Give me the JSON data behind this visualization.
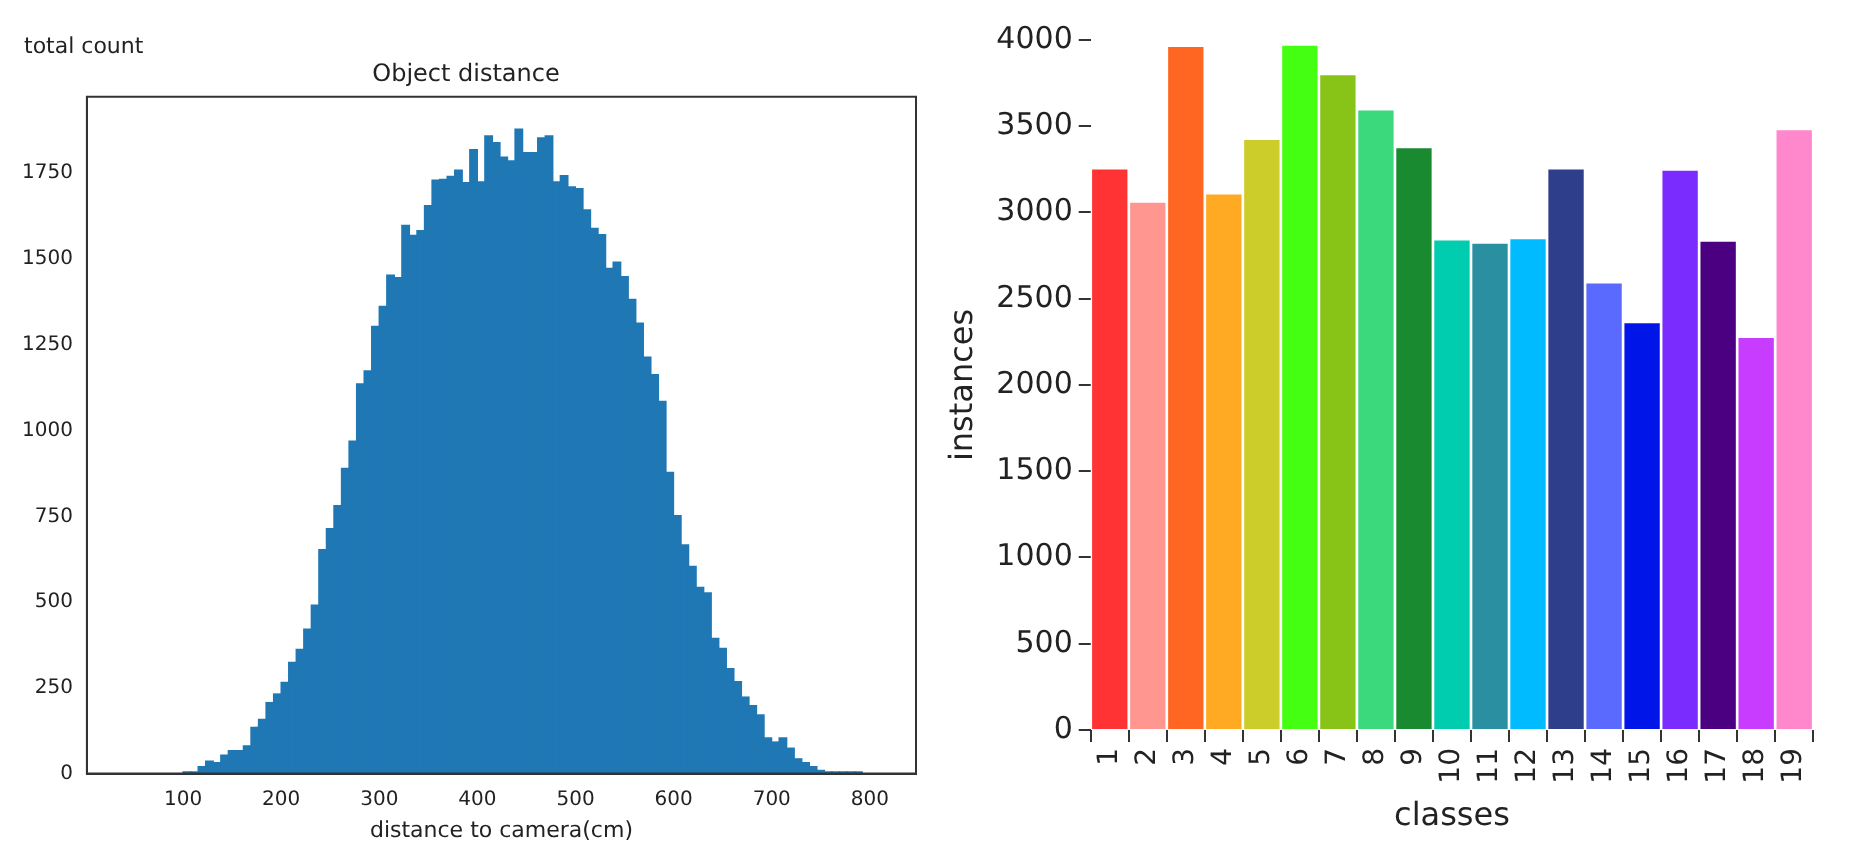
{
  "chart_data": [
    {
      "type": "histogram",
      "title": "Object distance",
      "ylabel": "total count",
      "xlabel": "distance to camera(cm)",
      "color": "#1f77b4",
      "bins": [
        100,
        107.69,
        115.38,
        123.07,
        130.76,
        138.45,
        146.14,
        153.83,
        161.52,
        169.21,
        176.9,
        184.59,
        192.28,
        199.97,
        207.66,
        215.35,
        223.04,
        230.73,
        238.42,
        246.11,
        253.8,
        261.49,
        269.18,
        276.87,
        284.56,
        292.25,
        299.94,
        307.63,
        315.32,
        323.01,
        330.7,
        338.39,
        346.08,
        353.77,
        361.46,
        369.15,
        376.84,
        384.53,
        392.22,
        399.91,
        407.6,
        415.29,
        422.98,
        430.67,
        438.36,
        446.05,
        453.74,
        461.43,
        469.12,
        476.81,
        484.5,
        492.19,
        499.88,
        507.57,
        515.26,
        522.95,
        530.64,
        538.33,
        546.02,
        553.71,
        561.4,
        569.09,
        576.78,
        584.47,
        592.16,
        599.85,
        607.54,
        615.23,
        622.92,
        630.61,
        638.3,
        645.99,
        653.68,
        661.37,
        669.06,
        676.75,
        684.44,
        692.13,
        699.82,
        707.51,
        715.2,
        722.89,
        730.58,
        738.27,
        745.96,
        753.65,
        761.34,
        769.03,
        776.72,
        784.41,
        792.1
      ],
      "values": [
        5,
        5,
        20,
        36,
        32,
        54,
        67,
        67,
        81,
        135,
        158,
        207,
        232,
        266,
        324,
        362,
        421,
        491,
        653,
        714,
        781,
        890,
        969,
        1136,
        1174,
        1304,
        1362,
        1453,
        1446,
        1598,
        1569,
        1583,
        1656,
        1730,
        1732,
        1741,
        1759,
        1723,
        1819,
        1725,
        1859,
        1839,
        1797,
        1786,
        1879,
        1810,
        1810,
        1853,
        1859,
        1725,
        1743,
        1710,
        1705,
        1643,
        1589,
        1571,
        1473,
        1491,
        1449,
        1382,
        1313,
        1214,
        1163,
        1085,
        878,
        752,
        667,
        604,
        543,
        527,
        394,
        365,
        306,
        268,
        223,
        198,
        171,
        104,
        92,
        104,
        74,
        43,
        32,
        20,
        9,
        5,
        5,
        5,
        5,
        5
      ],
      "xlim": [
        2,
        847
      ],
      "ylim": [
        0,
        1973
      ],
      "xticks": [
        100,
        200,
        300,
        400,
        500,
        600,
        700,
        800
      ],
      "yticks": [
        0,
        250,
        500,
        750,
        1000,
        1250,
        1500,
        1750
      ]
    },
    {
      "type": "bar",
      "xlabel": "classes",
      "ylabel": "instances",
      "categories": [
        "1",
        "2",
        "3",
        "4",
        "5",
        "6",
        "7",
        "8",
        "9",
        "10",
        "11",
        "12",
        "13",
        "14",
        "15",
        "16",
        "17",
        "18",
        "19"
      ],
      "values": [
        3257,
        3064,
        3967,
        3112,
        3428,
        3974,
        3803,
        3599,
        3380,
        2845,
        2826,
        2852,
        3257,
        2596,
        2366,
        3250,
        2838,
        2280,
        3484
      ],
      "colors": [
        "#ff3333",
        "#ff9690",
        "#ff6622",
        "#ffaa22",
        "#cccc2a",
        "#44ff11",
        "#88c418",
        "#3cd87c",
        "#1a8a30",
        "#00ccb0",
        "#2a8fa0",
        "#00bbff",
        "#2e3e8a",
        "#5a6aff",
        "#0016e8",
        "#7a2cff",
        "#4a0080",
        "#c83cff",
        "#ff88cc"
      ],
      "ylim": [
        0,
        4000
      ],
      "yticks": [
        0,
        500,
        1000,
        1500,
        2000,
        2500,
        3000,
        3500,
        4000
      ]
    }
  ]
}
